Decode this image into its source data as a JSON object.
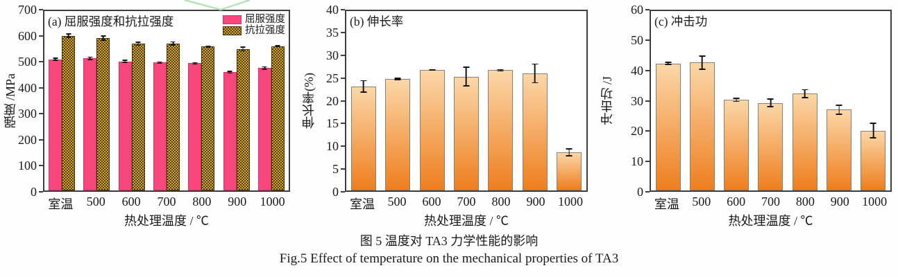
{
  "figure": {
    "caption_zh": "图 5  温度对 TA3 力学性能的影响",
    "caption_en": "Fig.5  Effect of temperature on the mechanical properties of TA3"
  },
  "colors": {
    "axis": "#3d3d3d",
    "yield_pink": "#f8477c",
    "yield_pink_edge": "#d13567",
    "tensile_gold": "#d8a930",
    "tensile_gold_dark": "#503d08",
    "tensile_gold_edge": "#3f3005",
    "orange_top": "#fbd7a8",
    "orange_bottom": "#ee7e1e",
    "watermark_green": "#b5e3b5"
  },
  "chart_data": [
    {
      "type": "bar",
      "panel": "a",
      "title": "(a) 屈服强度和抗拉强度",
      "ylabel": "强度 /MPa",
      "xlabel": "热处理温度 / ℃",
      "categories": [
        "室温",
        "500",
        "600",
        "700",
        "800",
        "900",
        "1000"
      ],
      "ylim": [
        0,
        700
      ],
      "yticks": [
        0,
        100,
        200,
        300,
        400,
        500,
        600,
        700
      ],
      "grid": false,
      "legend": true,
      "legend_position": "top-right-inside",
      "series": [
        {
          "name": "屈服强度",
          "key": "yield-strength",
          "style": "pink-solid",
          "values": [
            512,
            516,
            504,
            499,
            496,
            462,
            478
          ],
          "errors": [
            7,
            7,
            6,
            5,
            5,
            6,
            7
          ]
        },
        {
          "name": "抗拉强度",
          "key": "tensile-strength",
          "style": "gold-checker",
          "values": [
            604,
            595,
            572,
            574,
            561,
            552,
            563
          ],
          "errors": [
            9,
            10,
            8,
            8,
            5,
            10,
            4
          ]
        }
      ]
    },
    {
      "type": "bar",
      "panel": "b",
      "title": "(b) 伸长率",
      "ylabel": "伸长率(%)",
      "xlabel": "热处理温度 / ℃",
      "categories": [
        "室温",
        "500",
        "600",
        "700",
        "800",
        "900",
        "1000"
      ],
      "ylim": [
        0,
        40
      ],
      "yticks": [
        0,
        5,
        10,
        15,
        20,
        25,
        30,
        35,
        40
      ],
      "grid": false,
      "legend": false,
      "series": [
        {
          "name": "伸长率",
          "key": "elongation",
          "style": "orange-gradient",
          "values": [
            23.2,
            24.9,
            26.9,
            25.4,
            26.8,
            26.1,
            8.5
          ],
          "errors": [
            1.4,
            0.3,
            0.2,
            2.2,
            0.3,
            2.2,
            0.9
          ]
        }
      ]
    },
    {
      "type": "bar",
      "panel": "c",
      "title": "(c) 冲击功",
      "ylabel": "冲击功 /J",
      "xlabel": "热处理温度 / ℃",
      "categories": [
        "室温",
        "500",
        "600",
        "700",
        "800",
        "900",
        "1000"
      ],
      "ylim": [
        0,
        60
      ],
      "yticks": [
        0,
        10,
        20,
        30,
        40,
        50,
        60
      ],
      "grid": false,
      "legend": false,
      "series": [
        {
          "name": "冲击功",
          "key": "impact-energy",
          "style": "orange-gradient",
          "values": [
            42.5,
            42.8,
            30.3,
            29.3,
            32.4,
            27.0,
            20.0
          ],
          "errors": [
            0.6,
            2.4,
            0.7,
            1.5,
            1.5,
            1.7,
            2.6
          ]
        }
      ]
    }
  ]
}
